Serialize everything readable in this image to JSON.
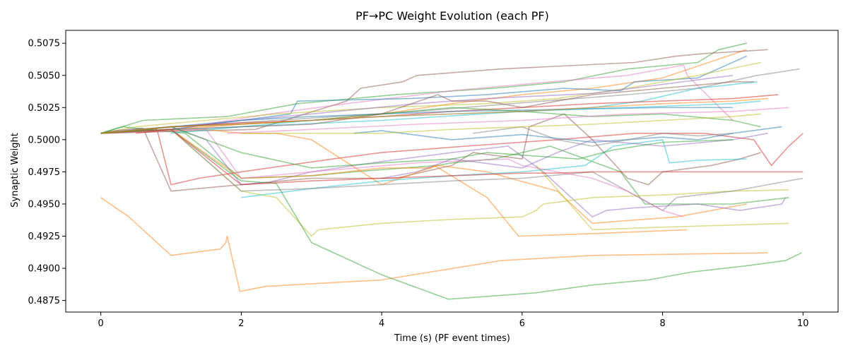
{
  "chart_data": {
    "type": "line",
    "title": "PF→PC Weight Evolution (each PF)",
    "xlabel": "Time (s) (PF event times)",
    "ylabel": "Synaptic Weight",
    "xlim": [
      -0.5,
      10.5
    ],
    "ylim": [
      0.4866,
      0.5085
    ],
    "xticks": [
      0,
      2,
      4,
      6,
      8,
      10
    ],
    "xtick_labels": [
      "0",
      "2",
      "4",
      "6",
      "8",
      "10"
    ],
    "yticks": [
      0.4875,
      0.49,
      0.4925,
      0.495,
      0.4975,
      0.5,
      0.5025,
      0.505,
      0.5075
    ],
    "ytick_labels": [
      "0.4875",
      "0.4900",
      "0.4925",
      "0.4950",
      "0.4975",
      "0.5000",
      "0.5025",
      "0.5050",
      "0.5075"
    ],
    "grid": false,
    "legend": false,
    "line_alpha": 0.5,
    "series": [
      {
        "color": "#2ca02c",
        "x": [
          0.0,
          0.6,
          1.8,
          2.8,
          4.2,
          5.6,
          6.6,
          7.5,
          8.5,
          8.8,
          9.2
        ],
        "y": [
          0.5005,
          0.5015,
          0.5018,
          0.5028,
          0.5035,
          0.504,
          0.5045,
          0.5055,
          0.506,
          0.507,
          0.5075
        ]
      },
      {
        "color": "#ff7f0e",
        "x": [
          0.0,
          1.0,
          2.0,
          3.0,
          4.0,
          5.0,
          6.0,
          7.0,
          8.0,
          9.2
        ],
        "y": [
          0.5005,
          0.5008,
          0.5012,
          0.5015,
          0.502,
          0.5028,
          0.5035,
          0.504,
          0.5048,
          0.507
        ]
      },
      {
        "color": "#8c564b",
        "x": [
          0.0,
          2.2,
          3.5,
          3.7,
          4.3,
          4.5,
          5.7,
          7.6,
          8.2,
          8.6,
          9.5
        ],
        "y": [
          0.5005,
          0.5008,
          0.503,
          0.504,
          0.5045,
          0.505,
          0.5055,
          0.506,
          0.5065,
          0.5067,
          0.507
        ]
      },
      {
        "color": "#e377c2",
        "x": [
          0.0,
          1.5,
          2.4,
          3.5,
          5.0,
          6.4,
          7.5,
          8.3,
          8.35,
          9.0
        ],
        "y": [
          0.5005,
          0.5012,
          0.502,
          0.5028,
          0.5038,
          0.5045,
          0.505,
          0.5058,
          0.505,
          0.5015
        ]
      },
      {
        "color": "#1f77b4",
        "x": [
          0.0,
          1.0,
          2.7,
          2.8,
          4.4,
          5.5,
          6.6,
          7.4,
          7.6,
          8.5,
          9.2
        ],
        "y": [
          0.5005,
          0.5008,
          0.502,
          0.503,
          0.5032,
          0.5035,
          0.504,
          0.5038,
          0.5045,
          0.5048,
          0.5065
        ]
      },
      {
        "color": "#7f7f7f",
        "x": [
          0.0,
          1.0,
          2.5,
          4.5,
          6.3,
          7.5,
          8.5,
          9.35,
          9.6,
          9.95
        ],
        "y": [
          0.5005,
          0.501,
          0.5015,
          0.5022,
          0.503,
          0.5035,
          0.504,
          0.505,
          0.5052,
          0.5055
        ]
      },
      {
        "color": "#bcbd22",
        "x": [
          0.0,
          0.5,
          1.5,
          2.5,
          4.0,
          5.5,
          6.5,
          7.5,
          8.5,
          9.4
        ],
        "y": [
          0.5005,
          0.501,
          0.5015,
          0.502,
          0.5025,
          0.5028,
          0.5032,
          0.504,
          0.505,
          0.506
        ]
      },
      {
        "color": "#17becf",
        "x": [
          0.0,
          2.0,
          4.0,
          6.0,
          7.0,
          7.7,
          8.5,
          9.35
        ],
        "y": [
          0.5005,
          0.501,
          0.5015,
          0.5022,
          0.5025,
          0.503,
          0.504,
          0.5045
        ]
      },
      {
        "color": "#9467bd",
        "x": [
          0.0,
          1.0,
          2.0,
          3.0,
          4.5,
          5.5,
          7.0,
          9.0
        ],
        "y": [
          0.5005,
          0.5008,
          0.5015,
          0.502,
          0.5028,
          0.5032,
          0.5036,
          0.505
        ]
      },
      {
        "color": "#d62728",
        "x": [
          0.0,
          1.0,
          2.0,
          3.0,
          4.0,
          5.0,
          6.0,
          7.0,
          8.0,
          9.0,
          9.65
        ],
        "y": [
          0.5005,
          0.501,
          0.5013,
          0.5015,
          0.5018,
          0.5022,
          0.5025,
          0.5028,
          0.503,
          0.5032,
          0.5035
        ]
      },
      {
        "color": "#1f77b4",
        "x": [
          0.0,
          1.0,
          2.0,
          3.0,
          4.0,
          5.0,
          6.0,
          7.0,
          8.0,
          9.0
        ],
        "y": [
          0.5005,
          0.501,
          0.5015,
          0.5018,
          0.502,
          0.5022,
          0.5023,
          0.5024,
          0.5025,
          0.5025
        ]
      },
      {
        "color": "#8c564b",
        "x": [
          0.0,
          0.2,
          0.6,
          1.0,
          2.0,
          3.0,
          4.2,
          5.0,
          5.3,
          6.0,
          6.1,
          6.6,
          7.0,
          7.5,
          7.8,
          8.0,
          8.7,
          9.1,
          9.4
        ],
        "y": [
          0.5005,
          0.5007,
          0.5009,
          0.496,
          0.4965,
          0.497,
          0.497,
          0.498,
          0.499,
          0.4985,
          0.501,
          0.502,
          0.5,
          0.497,
          0.4965,
          0.4975,
          0.498,
          0.4985,
          0.499
        ]
      },
      {
        "color": "#d62728",
        "x": [
          0.0,
          0.8,
          1.0,
          1.4,
          2.0,
          3.3,
          4.0,
          5.2,
          6.5,
          7.6,
          8.6,
          9.3,
          9.55,
          9.8,
          10.0
        ],
        "y": [
          0.5005,
          0.5008,
          0.4965,
          0.497,
          0.4975,
          0.4985,
          0.499,
          0.4995,
          0.5,
          0.5005,
          0.5005,
          0.5,
          0.498,
          0.4995,
          0.5005
        ]
      },
      {
        "color": "#2ca02c",
        "x": [
          0.0,
          0.3,
          1.2,
          2.0,
          3.0,
          3.6,
          4.8,
          5.0,
          5.6,
          6.4,
          7.4,
          7.75,
          8.1,
          9.0,
          9.8
        ],
        "y": [
          0.5005,
          0.501,
          0.5005,
          0.497,
          0.4972,
          0.4975,
          0.498,
          0.4982,
          0.4985,
          0.4995,
          0.4975,
          0.495,
          0.495,
          0.495,
          0.4955
        ]
      },
      {
        "color": "#ff7f0e",
        "x": [
          0.0,
          1.5,
          2.0,
          2.5,
          3.0,
          4.0,
          4.8,
          5.5,
          6.5,
          7.0,
          8.2,
          9.2
        ],
        "y": [
          0.5005,
          0.5008,
          0.5005,
          0.5005,
          0.5,
          0.4965,
          0.498,
          0.4975,
          0.496,
          0.4935,
          0.494,
          0.495
        ]
      },
      {
        "color": "#9467bd",
        "x": [
          0.0,
          0.5,
          1.0,
          1.5,
          2.0,
          2.4,
          3.0,
          4.0,
          5.0,
          5.8,
          6.3,
          7.0,
          7.2,
          7.6,
          8.5,
          9.1,
          9.7,
          9.75
        ],
        "y": [
          0.5005,
          0.5008,
          0.501,
          0.5,
          0.4965,
          0.4967,
          0.4975,
          0.4983,
          0.499,
          0.4995,
          0.4975,
          0.494,
          0.4945,
          0.4947,
          0.495,
          0.4945,
          0.495,
          0.4955
        ]
      },
      {
        "color": "#bcbd22",
        "x": [
          0.0,
          1.0,
          2.0,
          2.5,
          3.0,
          3.1,
          4.0,
          5.0,
          6.0,
          6.2,
          6.3,
          7.0,
          8.0,
          9.0,
          9.8
        ],
        "y": [
          0.5005,
          0.5008,
          0.496,
          0.4955,
          0.4925,
          0.493,
          0.4935,
          0.4938,
          0.494,
          0.4945,
          0.495,
          0.4955,
          0.4957,
          0.496,
          0.4961
        ]
      },
      {
        "color": "#17becf",
        "x": [
          2.0,
          3.0,
          4.0,
          5.0,
          6.0,
          6.9,
          7.3,
          8.0,
          8.1,
          8.5,
          9.2
        ],
        "y": [
          0.4955,
          0.4962,
          0.4968,
          0.4972,
          0.4975,
          0.498,
          0.4995,
          0.5,
          0.4982,
          0.4984,
          0.4985
        ]
      },
      {
        "color": "#ff7f0e",
        "x": [
          0.0,
          0.4,
          1.0,
          1.7,
          1.78,
          1.8,
          1.98,
          2.35,
          4.0,
          5.7,
          7.0,
          9.5
        ],
        "y": [
          0.4955,
          0.494,
          0.491,
          0.4915,
          0.492,
          0.4925,
          0.4882,
          0.4886,
          0.4891,
          0.4906,
          0.491,
          0.4912
        ]
      },
      {
        "color": "#2ca02c",
        "x": [
          0.0,
          1.0,
          2.0,
          2.5,
          3.0,
          4.0,
          4.95,
          6.2,
          7.0,
          7.8,
          8.4,
          9.2,
          9.75,
          9.98
        ],
        "y": [
          0.5005,
          0.5008,
          0.4968,
          0.4966,
          0.492,
          0.4895,
          0.4876,
          0.4881,
          0.4887,
          0.4891,
          0.4897,
          0.4902,
          0.4906,
          0.4912
        ]
      },
      {
        "color": "#ff7f0e",
        "x": [
          0.0,
          1.0,
          2.0,
          3.0,
          4.0,
          4.7,
          4.75,
          5.5,
          5.95,
          7.0,
          8.35
        ],
        "y": [
          0.5005,
          0.5008,
          0.497,
          0.4972,
          0.4978,
          0.4978,
          0.498,
          0.4955,
          0.4925,
          0.4927,
          0.493
        ]
      },
      {
        "color": "#bcbd22",
        "x": [
          6.2,
          7.0,
          8.0,
          9.8
        ],
        "y": [
          0.498,
          0.493,
          0.4932,
          0.4935
        ]
      },
      {
        "color": "#7f7f7f",
        "x": [
          0.0,
          1.0,
          2.0,
          3.0,
          4.0,
          5.0,
          6.0,
          7.0,
          8.0,
          8.2,
          8.5,
          9.0,
          9.5,
          10.0
        ],
        "y": [
          0.5005,
          0.5008,
          0.496,
          0.4962,
          0.4965,
          0.4968,
          0.497,
          0.4975,
          0.4945,
          0.4955,
          0.4957,
          0.496,
          0.4965,
          0.497
        ]
      },
      {
        "color": "#e377c2",
        "x": [
          0.0,
          1.5,
          2.0,
          3.0,
          4.5,
          5.8,
          6.0,
          7.0,
          7.5,
          8.0,
          8.3
        ],
        "y": [
          0.5005,
          0.5008,
          0.497,
          0.4975,
          0.4982,
          0.4985,
          0.498,
          0.497,
          0.496,
          0.4945,
          0.494
        ]
      },
      {
        "color": "#2ca02c",
        "x": [
          0.0,
          1.0,
          2.0,
          3.0,
          4.0,
          5.0,
          6.0,
          7.0,
          8.0,
          9.0,
          9.4
        ],
        "y": [
          0.5005,
          0.501,
          0.5012,
          0.5015,
          0.502,
          0.5025,
          0.5022,
          0.5018,
          0.502,
          0.5015,
          0.501
        ]
      },
      {
        "color": "#1f77b4",
        "x": [
          3.6,
          4.0,
          5.0,
          6.0,
          7.0,
          8.0,
          8.5,
          9.0,
          9.7
        ],
        "y": [
          0.5005,
          0.5007,
          0.5,
          0.5004,
          0.4998,
          0.5002,
          0.5,
          0.5005,
          0.501
        ]
      },
      {
        "color": "#9467bd",
        "x": [
          4.0,
          4.5,
          5.0,
          6.0,
          6.5,
          7.0,
          8.0,
          9.0,
          9.5
        ],
        "y": [
          0.497,
          0.4975,
          0.4985,
          0.4978,
          0.499,
          0.5,
          0.4995,
          0.5,
          0.5005
        ]
      },
      {
        "color": "#d62728",
        "x": [
          0.5,
          1.0,
          2.0,
          3.0,
          4.0,
          5.0,
          5.5,
          6.0,
          6.5,
          7.0,
          8.0,
          9.0,
          10.0
        ],
        "y": [
          0.5005,
          0.5008,
          0.4965,
          0.4968,
          0.497,
          0.4972,
          0.4973,
          0.4974,
          0.4974,
          0.4975,
          0.4975,
          0.4975,
          0.4975
        ]
      },
      {
        "color": "#7f7f7f",
        "x": [
          5.3,
          6.0,
          6.5,
          7.0,
          8.0,
          8.5,
          9.0
        ],
        "y": [
          0.5005,
          0.501,
          0.5,
          0.4995,
          0.5005,
          0.5003,
          0.5005
        ]
      },
      {
        "color": "#17becf",
        "x": [
          1.0,
          2.0,
          3.0,
          4.0,
          5.0,
          6.0,
          7.0,
          8.0,
          9.0,
          9.4
        ],
        "y": [
          0.5005,
          0.501,
          0.5015,
          0.5018,
          0.502,
          0.5022,
          0.5024,
          0.5026,
          0.5028,
          0.503
        ]
      },
      {
        "color": "#e377c2",
        "x": [
          1.8,
          3.0,
          4.5,
          6.0,
          7.5,
          9.0,
          9.8
        ],
        "y": [
          0.5005,
          0.5008,
          0.5012,
          0.5015,
          0.502,
          0.5022,
          0.5025
        ]
      },
      {
        "color": "#bcbd22",
        "x": [
          2.0,
          3.0,
          4.0,
          5.0,
          6.0,
          7.0,
          8.0,
          9.0,
          9.4
        ],
        "y": [
          0.5005,
          0.5005,
          0.5005,
          0.5008,
          0.501,
          0.5012,
          0.5015,
          0.5018,
          0.502
        ]
      },
      {
        "color": "#8c564b",
        "x": [
          0.0,
          1.0,
          2.0,
          3.0,
          4.0,
          4.8,
          5.0,
          5.5,
          6.0,
          6.5,
          7.0,
          8.0,
          9.0,
          9.3
        ],
        "y": [
          0.5005,
          0.5008,
          0.501,
          0.5012,
          0.502,
          0.5035,
          0.503,
          0.503,
          0.5025,
          0.503,
          0.5035,
          0.504,
          0.5045,
          0.5045
        ]
      },
      {
        "color": "#2ca02c",
        "x": [
          0.0,
          0.5,
          1.0,
          2.0,
          3.0,
          4.0,
          5.0,
          5.5,
          6.0,
          6.8,
          7.3,
          8.0,
          9.0
        ],
        "y": [
          0.5005,
          0.5007,
          0.501,
          0.499,
          0.4978,
          0.4982,
          0.4985,
          0.499,
          0.4988,
          0.4985,
          0.4992,
          0.4998,
          0.5
        ]
      },
      {
        "color": "#ff7f0e",
        "x": [
          0.0,
          1.0,
          2.0,
          3.0,
          4.0,
          5.0,
          6.0,
          7.0,
          8.0,
          9.0,
          9.5
        ],
        "y": [
          0.5005,
          0.501,
          0.5012,
          0.5015,
          0.5018,
          0.502,
          0.5022,
          0.5025,
          0.5028,
          0.503,
          0.5032
        ]
      }
    ]
  }
}
